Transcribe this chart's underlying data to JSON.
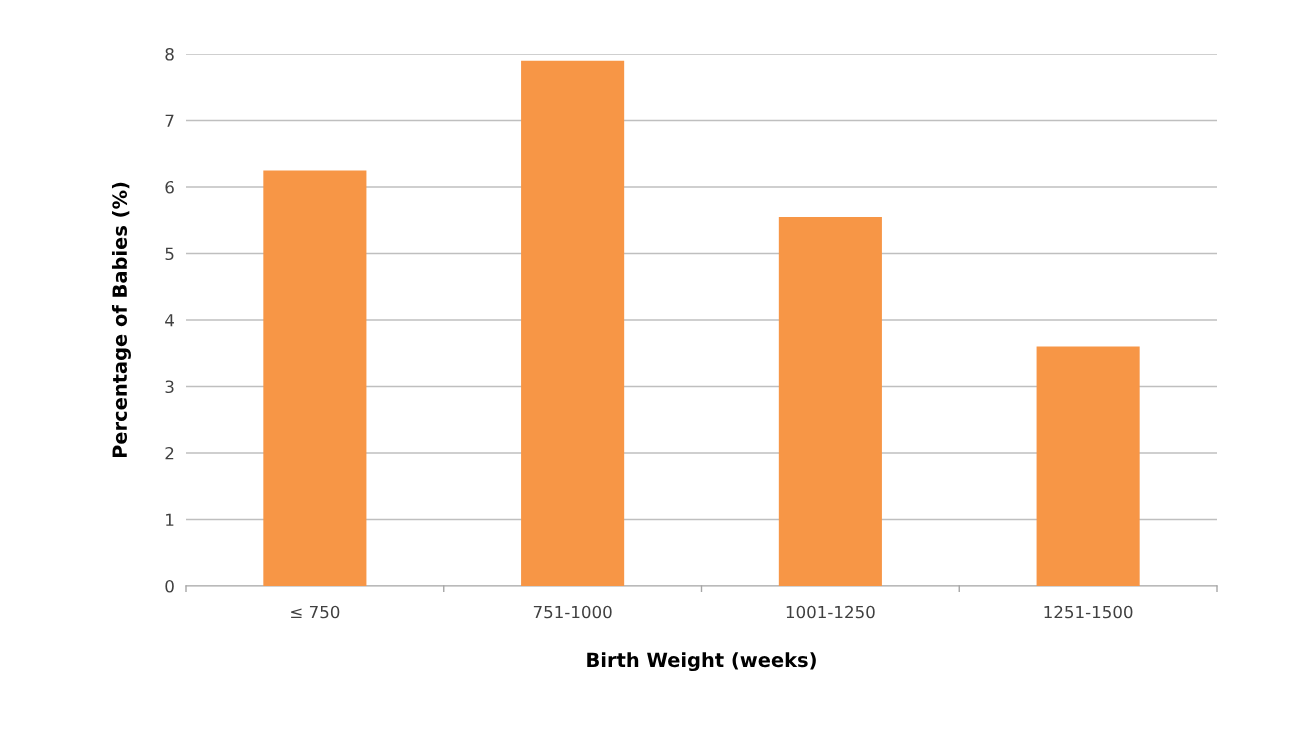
{
  "chart_data": {
    "type": "bar",
    "xlabel": "Birth Weight (weeks)",
    "ylabel": "Percentage of Babies (%)",
    "categories": [
      "≤ 750",
      "751-1000",
      "1001-1250",
      "1251-1500"
    ],
    "values": [
      6.25,
      7.9,
      5.55,
      3.6
    ],
    "color": "#f79646",
    "ylim": [
      0,
      8
    ],
    "yticks": [
      0,
      1,
      2,
      3,
      4,
      5,
      6,
      7,
      8
    ],
    "grid": "y"
  }
}
